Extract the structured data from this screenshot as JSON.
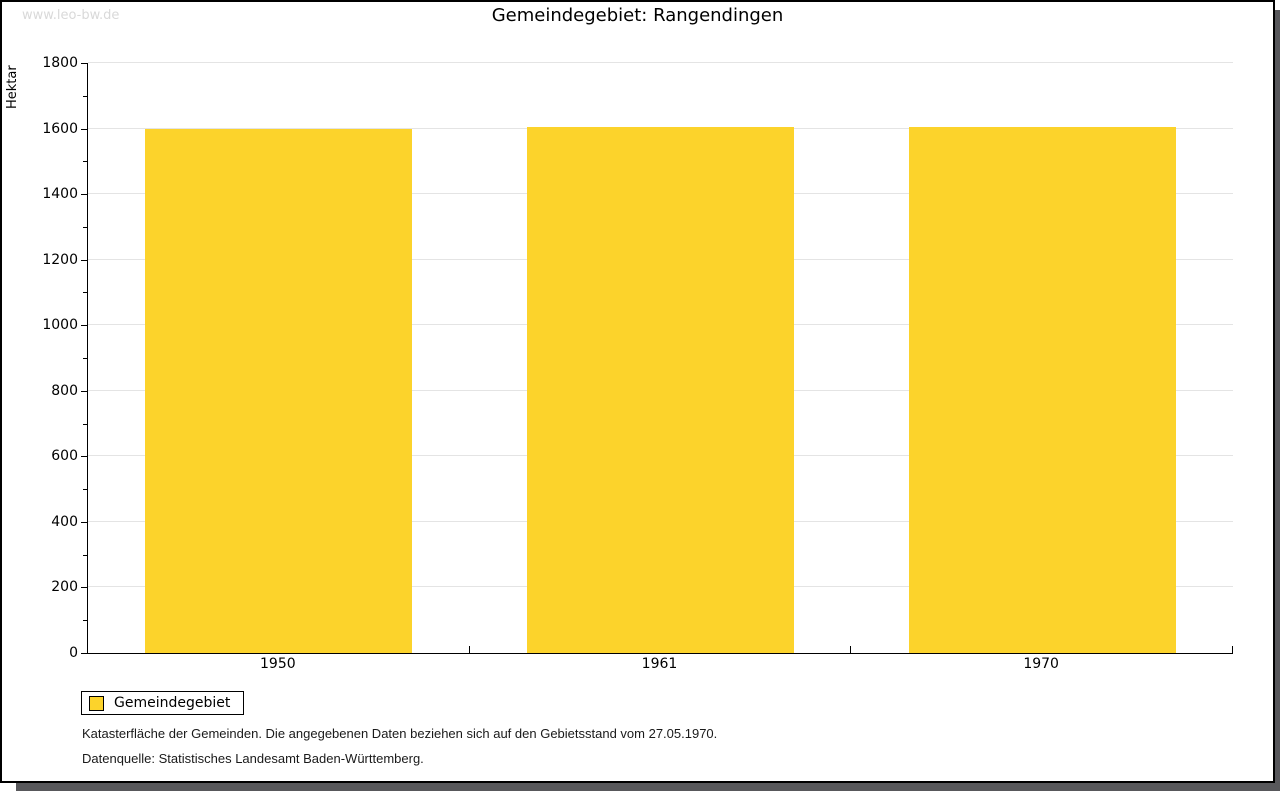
{
  "page": {
    "watermark": "www.leo-bw.de",
    "title": "Gemeindegebiet: Rangendingen"
  },
  "chart_data": {
    "type": "bar",
    "title": "Gemeindegebiet: Rangendingen",
    "categories": [
      "1950",
      "1961",
      "1970"
    ],
    "series": [
      {
        "name": "Gemeindegebiet",
        "values": [
          1598,
          1606,
          1606
        ]
      }
    ],
    "xlabel": "",
    "ylabel": "Hektar",
    "ylim": [
      0,
      1800
    ],
    "y_major_step": 200,
    "y_minor_step": 100,
    "grid": true,
    "legend_position": "bottom-left",
    "bar_color": "#fcd32b",
    "bar_width_fraction": 0.7
  },
  "legend": {
    "items": [
      {
        "label": "Gemeindegebiet",
        "color": "#fcd32b"
      }
    ]
  },
  "footer": {
    "line1": "Katasterfläche der Gemeinden. Die angegebenen Daten beziehen sich auf den Gebietsstand vom 27.05.1970.",
    "line2": "Datenquelle: Statistisches Landesamt Baden-Württemberg."
  },
  "colors": {
    "bar": "#fcd32b",
    "gridline": "#e4e4e4",
    "axis": "#000000",
    "watermark": "#d9d9d9",
    "shadow": "#58585b",
    "background": "#ffffff"
  }
}
